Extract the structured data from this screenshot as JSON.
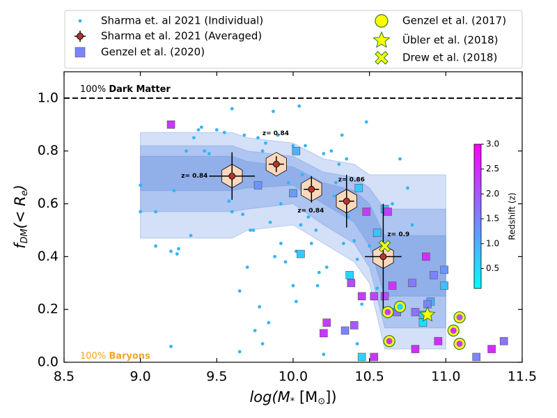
{
  "chart_data": {
    "type": "scatter",
    "x_label_parts": [
      "log(M",
      "*",
      " [M",
      "⊙",
      "])"
    ],
    "y_label_parts": [
      "f",
      "DM",
      "(< R",
      "e",
      ")"
    ],
    "xlim": [
      8.5,
      11.5
    ],
    "ylim": [
      0,
      1.1
    ],
    "xticks": [
      8.5,
      {
        "value": 9,
        "label": "9.0"
      },
      9.5,
      {
        "value": 10,
        "label": "10.0"
      },
      10.5,
      {
        "value": 11,
        "label": "11.0"
      },
      11.5
    ],
    "yticks": [
      {
        "value": 0,
        "label": "0.0"
      },
      0.2,
      0.4,
      0.6,
      0.8,
      {
        "value": 1,
        "label": "1.0"
      }
    ],
    "hline": 1.0,
    "annotations": [
      {
        "prefix": "100%",
        "bold": "Dark Matter",
        "color": "#000000"
      },
      {
        "prefix": "100%",
        "bold": "Baryons",
        "color": "#f5a623"
      }
    ],
    "bands": [
      {
        "color": "#aec6f2",
        "x": [
          9.0,
          9.6,
          9.7,
          10.0,
          10.2,
          10.4,
          10.5,
          10.6,
          11.0
        ],
        "upper": [
          0.87,
          0.87,
          0.85,
          0.83,
          0.77,
          0.75,
          0.71,
          0.71,
          0.71
        ],
        "lower": [
          0.47,
          0.47,
          0.5,
          0.52,
          0.45,
          0.38,
          0.3,
          0.05,
          0.05
        ]
      },
      {
        "color": "#8eaeea",
        "x": [
          9.0,
          9.6,
          9.7,
          10.0,
          10.2,
          10.4,
          10.5,
          10.6,
          11.0
        ],
        "upper": [
          0.82,
          0.82,
          0.8,
          0.78,
          0.72,
          0.7,
          0.66,
          0.58,
          0.58
        ],
        "lower": [
          0.57,
          0.57,
          0.58,
          0.6,
          0.52,
          0.45,
          0.36,
          0.13,
          0.13
        ]
      },
      {
        "color": "#7a9ce4",
        "x": [
          9.0,
          9.6,
          9.7,
          10.0,
          10.2,
          10.4,
          10.5,
          10.6,
          11.0
        ],
        "upper": [
          0.78,
          0.78,
          0.76,
          0.74,
          0.68,
          0.65,
          0.6,
          0.48,
          0.48
        ],
        "lower": [
          0.65,
          0.65,
          0.66,
          0.67,
          0.6,
          0.53,
          0.44,
          0.25,
          0.25
        ]
      }
    ],
    "colorbar": {
      "label": "Redshift (z)",
      "lim": [
        0.1,
        3.0
      ],
      "ticks": [
        0.5,
        {
          "value": 1,
          "label": "1.0"
        },
        1.5,
        {
          "value": 2,
          "label": "2.0"
        },
        2.5,
        {
          "value": 3,
          "label": "3.0"
        }
      ]
    },
    "series": [
      {
        "name": "Sharma et. al 2021 (Individual)",
        "color": "#33b5f5",
        "x": [
          9.0,
          9.0,
          9.1,
          9.2,
          9.22,
          9.24,
          9.25,
          9.3,
          9.33,
          9.35,
          9.38,
          9.4,
          9.42,
          9.45,
          9.5,
          9.55,
          9.6,
          9.6,
          9.62,
          9.65,
          9.65,
          9.68,
          9.7,
          9.72,
          9.75,
          9.77,
          9.78,
          9.8,
          9.82,
          9.84,
          9.85,
          9.87,
          9.9,
          9.92,
          9.95,
          9.97,
          10.0,
          10.0,
          10.02,
          10.04,
          10.05,
          10.06,
          10.08,
          10.1,
          10.12,
          10.15,
          10.17,
          10.2,
          10.2,
          10.22,
          10.25,
          10.27,
          10.28,
          10.3,
          10.32,
          10.35,
          10.33,
          10.36,
          10.4,
          10.42,
          10.45,
          10.48,
          10.5,
          10.55,
          10.6,
          10.65,
          10.7,
          10.75,
          10.78,
          9.2,
          9.8,
          9.1,
          9.58,
          9.88,
          10.02,
          10.42,
          9.67,
          9.92,
          10.16,
          9.74
        ],
        "values": [
          0.57,
          0.67,
          0.44,
          0.42,
          0.65,
          0.41,
          0.43,
          0.8,
          0.48,
          0.85,
          0.88,
          0.89,
          0.8,
          0.79,
          0.88,
          0.87,
          0.96,
          0.57,
          0.73,
          0.27,
          0.04,
          0.86,
          0.36,
          0.5,
          0.12,
          0.85,
          0.21,
          0.8,
          0.83,
          0.15,
          0.53,
          0.95,
          0.86,
          0.45,
          0.38,
          0.68,
          0.29,
          0.82,
          0.23,
          0.97,
          0.52,
          0.71,
          0.82,
          0.55,
          0.45,
          0.5,
          0.34,
          0.79,
          0.03,
          0.36,
          0.8,
          0.63,
          0.68,
          0.75,
          0.86,
          0.77,
          0.45,
          0.55,
          0.46,
          0.39,
          0.22,
          0.91,
          0.44,
          0.28,
          0.38,
          0.6,
          0.77,
          0.66,
          0.52,
          0.06,
          0.07,
          0.57,
          0.61,
          0.4,
          0.42,
          0.07,
          0.56,
          0.6,
          0.29,
          0.5
        ]
      },
      {
        "name": "Sharma et al. 2021 (Averaged)",
        "color": "#b5342c",
        "x": [
          9.6,
          9.89,
          10.12,
          10.35,
          10.59
        ],
        "values": [
          0.705,
          0.75,
          0.655,
          0.61,
          0.4
        ],
        "yerr": [
          0.09,
          0.03,
          0.05,
          0.1,
          0.2
        ],
        "xerr": [
          0.15,
          0.05,
          0.05,
          0.05,
          0.12
        ],
        "z_labels": [
          "z= 0.84",
          "z= 0.84",
          "z= 0.84",
          "z= 0.86",
          "z= 0.9"
        ]
      },
      {
        "name": "Genzel et al. (2020)",
        "x": [
          9.2,
          9.77,
          10.02,
          10.0,
          10.05,
          10.22,
          10.2,
          10.34,
          10.37,
          10.38,
          10.4,
          10.43,
          10.48,
          10.45,
          10.45,
          10.53,
          10.53,
          10.55,
          10.6,
          10.62,
          10.6,
          10.65,
          10.68,
          10.78,
          10.8,
          10.8,
          10.85,
          10.85,
          10.87,
          10.9,
          10.92,
          10.95,
          10.99,
          10.99,
          10.88,
          11.2,
          11.3,
          11.38
        ],
        "values": [
          0.9,
          0.67,
          0.8,
          0.64,
          0.41,
          0.15,
          0.11,
          0.12,
          0.33,
          0.3,
          0.14,
          0.66,
          0.57,
          0.25,
          0.02,
          0.25,
          0.02,
          0.49,
          0.58,
          0.57,
          0.25,
          0.29,
          0.19,
          0.3,
          0.19,
          0.05,
          0.18,
          0.15,
          0.4,
          0.23,
          0.33,
          0.08,
          0.35,
          0.29,
          0.22,
          0.02,
          0.05,
          0.08
        ],
        "z": [
          2.4,
          1.3,
          1.0,
          1.2,
          0.7,
          2.3,
          2.4,
          1.5,
          0.6,
          2.1,
          2.0,
          0.7,
          2.3,
          2.3,
          0.6,
          2.2,
          2.4,
          0.8,
          0.9,
          2.3,
          2.1,
          2.4,
          1.7,
          1.6,
          1.7,
          2.5,
          0.8,
          0.5,
          2.5,
          1.0,
          1.5,
          2.5,
          1.3,
          0.8,
          1.5,
          1.5,
          2.5,
          1.7
        ]
      },
      {
        "name": "Genzel et al. (2017)",
        "color": "#ffff00",
        "x": [
          10.62,
          10.7,
          10.63,
          11.05,
          11.09,
          11.09
        ],
        "values": [
          0.19,
          0.21,
          0.08,
          0.12,
          0.17,
          0.07
        ],
        "z": [
          2.3,
          0.6,
          2.4,
          2.4,
          2.0,
          2.3
        ]
      },
      {
        "name": "Übler et al. (2018)",
        "color": "#ffff00",
        "x": [
          10.88
        ],
        "values": [
          0.18
        ]
      },
      {
        "name": "Drew et al. (2018)",
        "color": "#ffff00",
        "x": [
          10.6
        ],
        "values": [
          0.44
        ]
      }
    ]
  }
}
